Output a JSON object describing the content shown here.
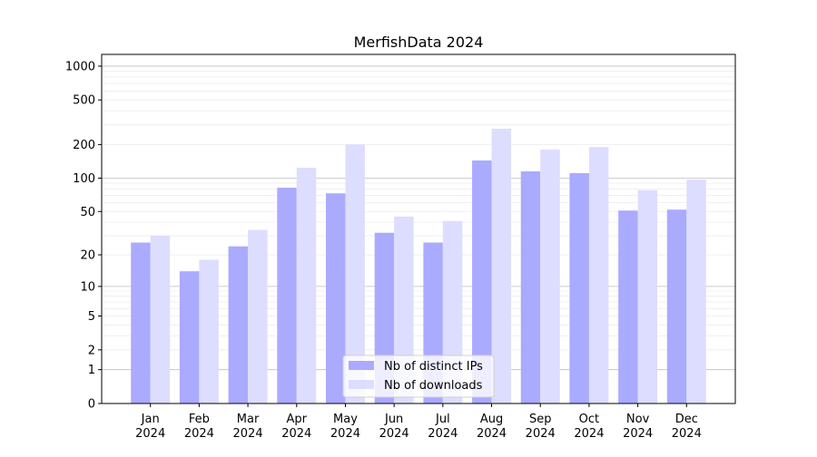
{
  "chart_data": {
    "type": "bar",
    "title": "MerfishData 2024",
    "xlabel": "",
    "ylabel": "",
    "yscale": "log(1+y)",
    "ylim": [
      0,
      1300
    ],
    "yticks": [
      0,
      1,
      2,
      5,
      10,
      20,
      50,
      100,
      200,
      500,
      1000
    ],
    "categories": [
      "Jan\n2024",
      "Feb\n2024",
      "Mar\n2024",
      "Apr\n2024",
      "May\n2024",
      "Jun\n2024",
      "Jul\n2024",
      "Aug\n2024",
      "Sep\n2024",
      "Oct\n2024",
      "Nov\n2024",
      "Dec\n2024"
    ],
    "series": [
      {
        "name": "Nb of distinct IPs",
        "color": "#aaaaff",
        "values": [
          26,
          14,
          24,
          82,
          73,
          32,
          26,
          144,
          115,
          111,
          51,
          52
        ]
      },
      {
        "name": "Nb of downloads",
        "color": "#ddddff",
        "values": [
          30,
          18,
          34,
          124,
          200,
          45,
          41,
          277,
          180,
          190,
          78,
          97
        ]
      }
    ],
    "grid": true,
    "legend": "bottom-center"
  }
}
